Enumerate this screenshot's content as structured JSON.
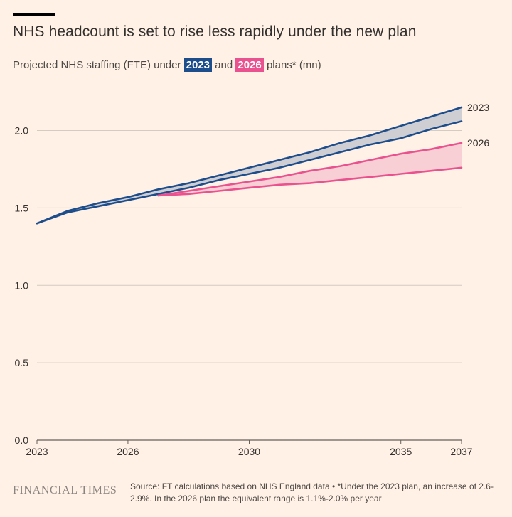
{
  "title": "NHS headcount is set to rise less rapidly under the new plan",
  "subtitle": {
    "prefix": "Projected NHS staffing (FTE) under ",
    "tag_2023": "2023",
    "middle": " and ",
    "tag_2026": "2026",
    "suffix": " plans* (mn)"
  },
  "colors": {
    "background": "#fff1e5",
    "plan_2023": "#1e4d8c",
    "plan_2026": "#e9528f",
    "band_2023": "#cfcfd3",
    "band_2026": "#f9cfd6",
    "grid": "#d4cbc3"
  },
  "chart_data": {
    "type": "line",
    "xlim": [
      2023,
      2037
    ],
    "ylim": [
      0,
      2.2
    ],
    "x_ticks": [
      2023,
      2026,
      2030,
      2035,
      2037
    ],
    "y_ticks": [
      0,
      0.5,
      1,
      1.5,
      2
    ],
    "y_tick_labels": [
      "0.0",
      "0.5",
      "1.0",
      "1.5",
      "2.0"
    ],
    "grid": true,
    "series": [
      {
        "name": "2023",
        "color": "#1e4d8c",
        "band_color": "#cfcfd3",
        "upper": [
          [
            2023,
            1.4
          ],
          [
            2024,
            1.48
          ],
          [
            2025,
            1.53
          ],
          [
            2026,
            1.57
          ],
          [
            2027,
            1.62
          ],
          [
            2028,
            1.66
          ],
          [
            2029,
            1.71
          ],
          [
            2030,
            1.76
          ],
          [
            2031,
            1.81
          ],
          [
            2032,
            1.86
          ],
          [
            2033,
            1.92
          ],
          [
            2034,
            1.97
          ],
          [
            2035,
            2.03
          ],
          [
            2036,
            2.09
          ],
          [
            2037,
            2.15
          ]
        ],
        "lower": [
          [
            2023,
            1.4
          ],
          [
            2024,
            1.47
          ],
          [
            2025,
            1.51
          ],
          [
            2026,
            1.55
          ],
          [
            2027,
            1.59
          ],
          [
            2028,
            1.63
          ],
          [
            2029,
            1.68
          ],
          [
            2030,
            1.72
          ],
          [
            2031,
            1.76
          ],
          [
            2032,
            1.81
          ],
          [
            2033,
            1.86
          ],
          [
            2034,
            1.91
          ],
          [
            2035,
            1.95
          ],
          [
            2036,
            2.01
          ],
          [
            2037,
            2.06
          ]
        ]
      },
      {
        "name": "2026",
        "color": "#e9528f",
        "band_color": "#f9cfd6",
        "upper": [
          [
            2027,
            1.58
          ],
          [
            2028,
            1.61
          ],
          [
            2029,
            1.64
          ],
          [
            2030,
            1.67
          ],
          [
            2031,
            1.7
          ],
          [
            2032,
            1.74
          ],
          [
            2033,
            1.77
          ],
          [
            2034,
            1.81
          ],
          [
            2035,
            1.85
          ],
          [
            2036,
            1.88
          ],
          [
            2037,
            1.92
          ]
        ],
        "lower": [
          [
            2027,
            1.58
          ],
          [
            2028,
            1.59
          ],
          [
            2029,
            1.61
          ],
          [
            2030,
            1.63
          ],
          [
            2031,
            1.65
          ],
          [
            2032,
            1.66
          ],
          [
            2033,
            1.68
          ],
          [
            2034,
            1.7
          ],
          [
            2035,
            1.72
          ],
          [
            2036,
            1.74
          ],
          [
            2037,
            1.76
          ]
        ]
      }
    ]
  },
  "footer": {
    "logo": "FINANCIAL TIMES",
    "source": "Source: FT calculations based on NHS England data • *Under the 2023 plan, an increase of 2.6-2.9%. In the 2026 plan the equivalent range is 1.1%-2.0% per year"
  }
}
